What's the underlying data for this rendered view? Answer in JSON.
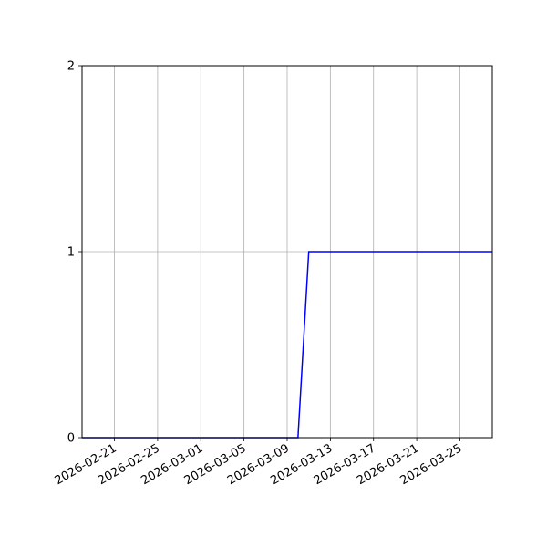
{
  "chart_data": {
    "type": "line",
    "title": "",
    "xlabel": "",
    "ylabel": "",
    "x_type": "date",
    "xlim": [
      "2026-02-18",
      "2026-03-28"
    ],
    "ylim": [
      0,
      2
    ],
    "grid": true,
    "x_ticks": [
      "2026-02-21",
      "2026-02-25",
      "2026-03-01",
      "2026-03-05",
      "2026-03-09",
      "2026-03-13",
      "2026-03-17",
      "2026-03-21",
      "2026-03-25"
    ],
    "y_ticks": [
      "0",
      "1",
      "2"
    ],
    "series": [
      {
        "color": "#0000ff",
        "points": [
          {
            "x": "2026-02-18",
            "y": 0
          },
          {
            "x": "2026-03-10",
            "y": 0
          },
          {
            "x": "2026-03-11",
            "y": 1
          },
          {
            "x": "2026-03-28",
            "y": 1
          }
        ]
      }
    ],
    "grid_color": "#b0b0b0"
  }
}
